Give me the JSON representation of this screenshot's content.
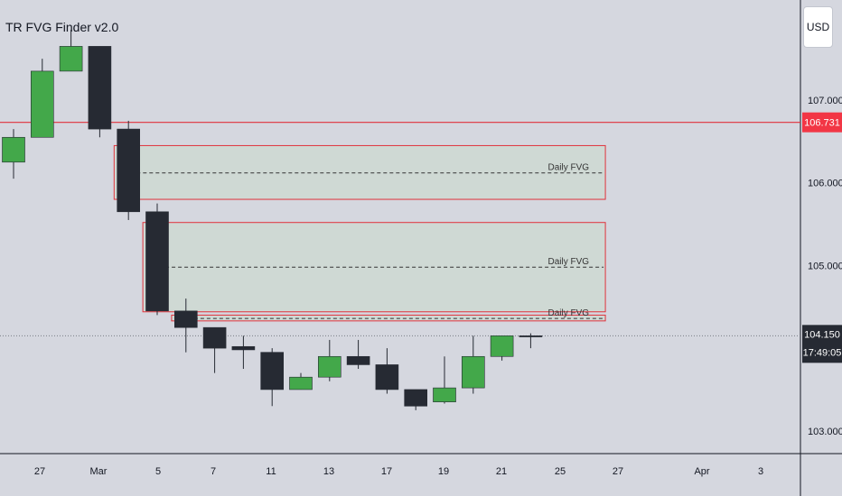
{
  "chart_title": "TR FVG Finder v2.0",
  "currency": "USD",
  "colors": {
    "background": "#d5d7df",
    "bullish": "#43a84a",
    "bearish": "#262a33",
    "fvg_border": "#e0323c",
    "fvg_fill": "#cfd9d4",
    "price_line": "#e0323c",
    "price_badge": "#f23645",
    "current_badge": "#262a33"
  },
  "chart_data": {
    "type": "candlestick",
    "title": "TR FVG Finder v2.0",
    "ylim": [
      102.7,
      108.0
    ],
    "x_ticks": [
      "27",
      "Mar",
      "5",
      "7",
      "11",
      "13",
      "17",
      "19",
      "21",
      "25",
      "27",
      "Apr",
      "3"
    ],
    "y_ticks": [
      "107.000",
      "106.000",
      "105.000",
      "103.000"
    ],
    "candles": [
      {
        "o": 106.25,
        "h": 106.65,
        "l": 106.05,
        "c": 106.55
      },
      {
        "o": 106.55,
        "h": 107.5,
        "l": 106.55,
        "c": 107.35
      },
      {
        "o": 107.35,
        "h": 107.85,
        "l": 107.35,
        "c": 107.65
      },
      {
        "o": 107.65,
        "h": 107.65,
        "l": 106.55,
        "c": 106.65
      },
      {
        "o": 106.65,
        "h": 106.75,
        "l": 105.55,
        "c": 105.65
      },
      {
        "o": 105.65,
        "h": 105.75,
        "l": 104.4,
        "c": 104.45
      },
      {
        "o": 104.45,
        "h": 104.6,
        "l": 103.95,
        "c": 104.25
      },
      {
        "o": 104.25,
        "h": 104.25,
        "l": 103.7,
        "c": 104.0
      },
      {
        "o": 104.02,
        "h": 104.15,
        "l": 103.75,
        "c": 103.98
      },
      {
        "o": 103.95,
        "h": 104.0,
        "l": 103.3,
        "c": 103.5
      },
      {
        "o": 103.5,
        "h": 103.7,
        "l": 103.5,
        "c": 103.65
      },
      {
        "o": 103.65,
        "h": 104.1,
        "l": 103.6,
        "c": 103.9
      },
      {
        "o": 103.9,
        "h": 104.1,
        "l": 103.75,
        "c": 103.8
      },
      {
        "o": 103.8,
        "h": 104.0,
        "l": 103.45,
        "c": 103.5
      },
      {
        "o": 103.5,
        "h": 103.5,
        "l": 103.25,
        "c": 103.3
      },
      {
        "o": 103.35,
        "h": 103.9,
        "l": 103.33,
        "c": 103.52
      },
      {
        "o": 103.52,
        "h": 104.15,
        "l": 103.45,
        "c": 103.9
      },
      {
        "o": 103.9,
        "h": 104.15,
        "l": 103.85,
        "c": 104.15
      },
      {
        "o": 104.15,
        "h": 104.18,
        "l": 104.0,
        "c": 104.14
      }
    ],
    "fvg_zones": [
      {
        "label": "Daily FVG",
        "top": 106.45,
        "bottom": 105.8,
        "mid": 106.12,
        "start": 3.5,
        "end": 20.6
      },
      {
        "label": "Daily FVG",
        "top": 105.52,
        "bottom": 104.44,
        "mid": 104.98,
        "start": 4.5,
        "end": 20.6
      },
      {
        "label": "Daily FVG",
        "top": 104.4,
        "bottom": 104.33,
        "mid": 104.36,
        "start": 5.5,
        "end": 20.6
      }
    ],
    "price_line": {
      "value": 106.731,
      "label": "106.731"
    },
    "current_price": {
      "value": 104.15,
      "label": "104.150",
      "timer": "17:49:05"
    }
  }
}
